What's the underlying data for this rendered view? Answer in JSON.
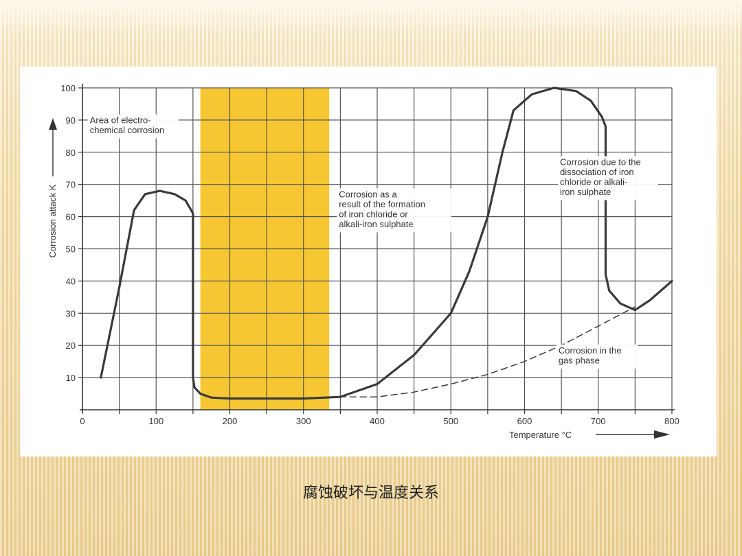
{
  "slide": {
    "caption": "腐蚀破坏与温度关系"
  },
  "chart_data": {
    "type": "line",
    "xlabel": "Temperature °C",
    "ylabel": "Corrosion attack K",
    "xlim": [
      0,
      800
    ],
    "ylim": [
      0,
      100
    ],
    "x_ticks": [
      "0",
      "100",
      "200",
      "300",
      "400",
      "500",
      "600",
      "700",
      "800"
    ],
    "y_ticks": [
      "10",
      "20",
      "30",
      "40",
      "50",
      "60",
      "70",
      "80",
      "90",
      "100"
    ],
    "grid": true,
    "highlight_band": {
      "from": 160,
      "to": 335,
      "color": "#f7c733"
    },
    "series": [
      {
        "style": "solid",
        "points": [
          [
            25,
            10
          ],
          [
            50,
            38
          ],
          [
            70,
            62
          ],
          [
            85,
            67
          ],
          [
            105,
            68
          ],
          [
            125,
            67
          ],
          [
            140,
            65
          ],
          [
            150,
            61
          ],
          [
            150,
            10
          ],
          [
            152,
            7
          ],
          [
            160,
            5
          ],
          [
            175,
            3.8
          ],
          [
            200,
            3.5
          ],
          [
            300,
            3.5
          ],
          [
            350,
            4
          ],
          [
            400,
            8
          ],
          [
            450,
            17
          ],
          [
            500,
            30
          ],
          [
            525,
            43
          ],
          [
            550,
            60
          ],
          [
            570,
            80
          ],
          [
            585,
            93
          ],
          [
            610,
            98
          ],
          [
            640,
            100
          ],
          [
            670,
            99
          ],
          [
            690,
            96
          ],
          [
            705,
            91
          ],
          [
            710,
            88
          ],
          [
            710,
            42
          ],
          [
            715,
            37
          ],
          [
            730,
            33
          ],
          [
            750,
            31
          ],
          [
            770,
            34
          ],
          [
            800,
            40
          ]
        ]
      },
      {
        "style": "dashed",
        "points": [
          [
            335,
            4
          ],
          [
            400,
            4
          ],
          [
            450,
            5.5
          ],
          [
            500,
            8
          ],
          [
            550,
            11
          ],
          [
            600,
            15
          ],
          [
            650,
            20
          ],
          [
            700,
            26
          ],
          [
            750,
            32
          ]
        ]
      }
    ],
    "annotations": [
      {
        "lines": [
          "Area of electro-",
          "chemical corrosion"
        ],
        "x": 10,
        "y": 89
      },
      {
        "lines": [
          "Corrosion as a",
          "result of the formation",
          "of iron chloride or",
          "alkali-iron sulphate"
        ],
        "x": 348,
        "y": 66
      },
      {
        "lines": [
          "Corrosion due to the",
          "dissociation of iron",
          "chloride or alkali-",
          "iron sulphate"
        ],
        "x": 648,
        "y": 76
      },
      {
        "lines": [
          "Corrosion in the",
          "gas phase"
        ],
        "x": 646,
        "y": 17.5
      }
    ]
  }
}
